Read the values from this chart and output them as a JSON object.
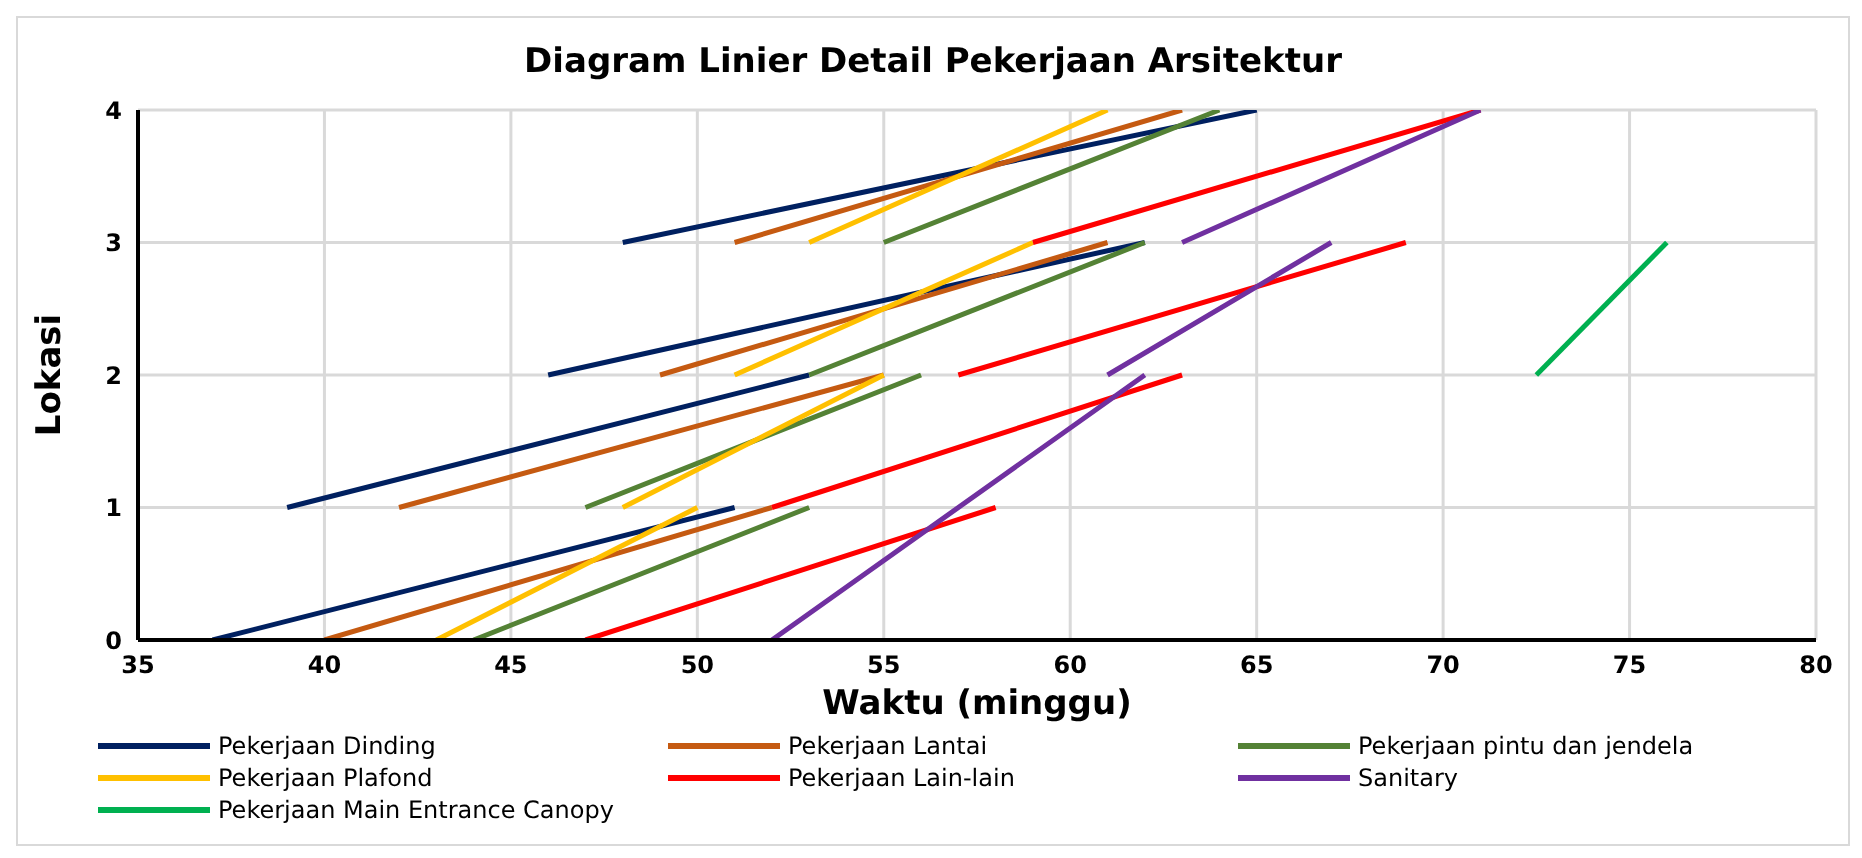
{
  "chart_data": {
    "type": "line",
    "title": "Diagram Linier Detail Pekerjaan Arsitektur",
    "xlabel": "Waktu (minggu)",
    "ylabel": "Lokasi",
    "xlim": [
      35,
      80
    ],
    "xticks": [
      35,
      40,
      45,
      50,
      55,
      60,
      65,
      70,
      75,
      80
    ],
    "ylim": [
      0,
      4
    ],
    "yticks": [
      0,
      1,
      2,
      3,
      4
    ],
    "grid": true,
    "legend": "bottom",
    "marker": "none",
    "line_style": "solid",
    "series": [
      {
        "name": "Pekerjaan Dinding",
        "color": "#002060",
        "x": [
          37,
          51,
          null,
          39,
          53,
          null,
          46,
          62,
          null,
          48,
          65
        ],
        "values": [
          0,
          1,
          null,
          1,
          2,
          null,
          2,
          3,
          null,
          3,
          4
        ]
      },
      {
        "name": "Pekerjaan Lantai",
        "color": "#c55a11",
        "x": [
          40,
          52,
          null,
          42,
          55,
          null,
          49,
          61,
          null,
          51,
          63
        ],
        "values": [
          0,
          1,
          null,
          1,
          2,
          null,
          2,
          3,
          null,
          3,
          4
        ]
      },
      {
        "name": "Pekerjaan pintu dan jendela",
        "color": "#548235",
        "x": [
          44,
          53,
          null,
          47,
          56,
          null,
          53,
          62,
          null,
          55,
          64
        ],
        "values": [
          0,
          1,
          null,
          1,
          2,
          null,
          2,
          3,
          null,
          3,
          4
        ]
      },
      {
        "name": "Pekerjaan Plafond",
        "color": "#ffc000",
        "x": [
          43,
          50,
          null,
          48,
          55,
          null,
          51,
          59,
          null,
          53,
          61
        ],
        "values": [
          0,
          1,
          null,
          1,
          2,
          null,
          2,
          3,
          null,
          3,
          4
        ]
      },
      {
        "name": "Pekerjaan Lain-lain",
        "color": "#ff0000",
        "x": [
          47,
          58,
          null,
          52,
          63,
          null,
          57,
          69,
          null,
          59,
          71
        ],
        "values": [
          0,
          1,
          null,
          1,
          2,
          null,
          2,
          3,
          null,
          3,
          4
        ]
      },
      {
        "name": "Sanitary",
        "color": "#7030a0",
        "x": [
          52,
          62,
          null,
          61,
          67,
          null,
          63,
          71
        ],
        "values": [
          0,
          2,
          null,
          2,
          3,
          null,
          3,
          4
        ]
      },
      {
        "name": "Pekerjaan Main Entrance Canopy",
        "color": "#00b050",
        "x": [
          72.5,
          76
        ],
        "values": [
          2,
          3
        ]
      }
    ]
  }
}
